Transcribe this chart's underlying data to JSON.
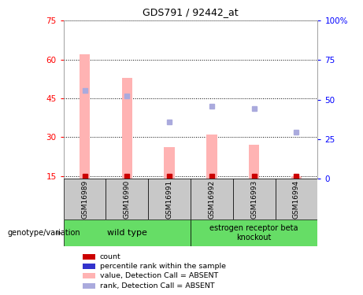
{
  "title": "GDS791 / 92442_at",
  "samples": [
    "GSM16989",
    "GSM16990",
    "GSM16991",
    "GSM16992",
    "GSM16993",
    "GSM16994"
  ],
  "bar_values": [
    62,
    53,
    26,
    31,
    27,
    15
  ],
  "rank_values": [
    48,
    46,
    36,
    42,
    41,
    32
  ],
  "count_values": [
    15,
    15,
    15,
    15,
    15,
    15
  ],
  "ylim_left": [
    14,
    75
  ],
  "ylim_right": [
    0,
    100
  ],
  "yticks_left": [
    15,
    30,
    45,
    60,
    75
  ],
  "yticks_right": [
    0,
    25,
    50,
    75,
    100
  ],
  "ytick_labels_right": [
    "0",
    "25",
    "50",
    "75",
    "100%"
  ],
  "bar_color": "#FFB3B3",
  "rank_color": "#AAAADD",
  "count_color": "#CC0000",
  "rank_marker_color": "#3333CC",
  "wild_type_label": "wild type",
  "knockout_label": "estrogen receptor beta\nknockout",
  "group_bg_color": "#66DD66",
  "sample_bg_color": "#C8C8C8",
  "genotype_label": "genotype/variation",
  "bar_bottom": 14,
  "legend_labels": [
    "count",
    "percentile rank within the sample",
    "value, Detection Call = ABSENT",
    "rank, Detection Call = ABSENT"
  ],
  "legend_colors": [
    "#CC0000",
    "#3333CC",
    "#FFB3B3",
    "#AAAADD"
  ]
}
